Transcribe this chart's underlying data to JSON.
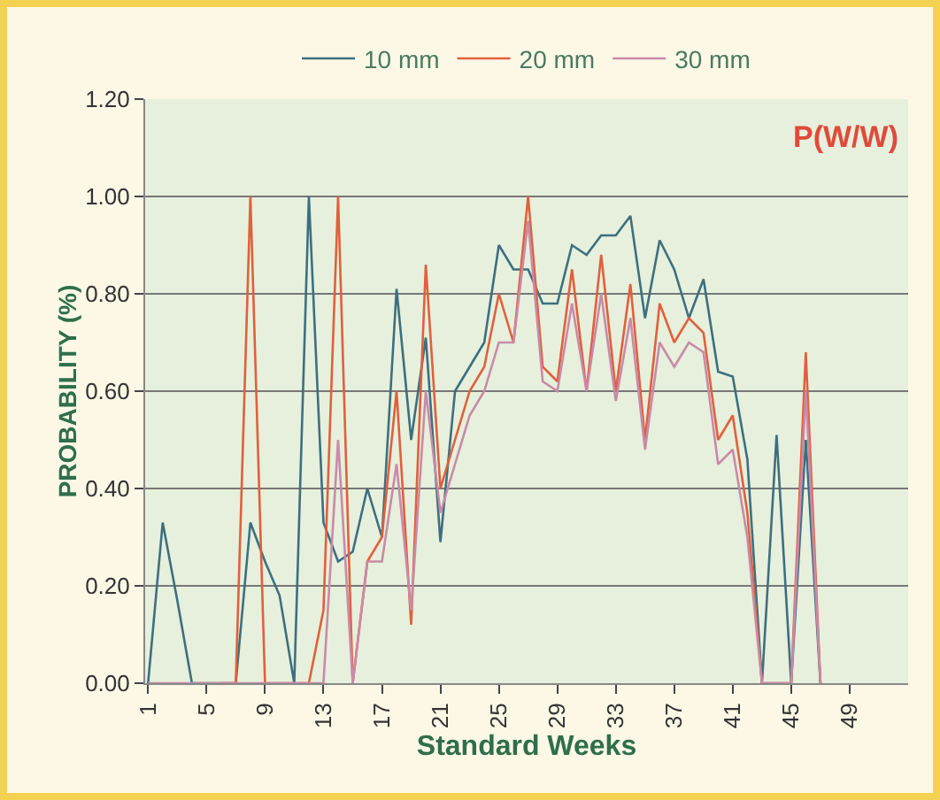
{
  "chart_data": {
    "type": "line",
    "xlabel": "Standard Weeks",
    "ylabel": "PROBABILITY (%)",
    "annotations": [
      "P(W/W)"
    ],
    "x": [
      1,
      2,
      3,
      4,
      5,
      6,
      7,
      8,
      9,
      10,
      11,
      12,
      13,
      14,
      15,
      16,
      17,
      18,
      19,
      20,
      21,
      22,
      23,
      24,
      25,
      26,
      27,
      28,
      29,
      30,
      31,
      32,
      33,
      34,
      35,
      36,
      37,
      38,
      39,
      40,
      41,
      42,
      43,
      44,
      45,
      46,
      47
    ],
    "series": [
      {
        "name": "10 mm",
        "color": "#3d6f80",
        "values": [
          0,
          0.33,
          0.17,
          0,
          0,
          0,
          0,
          0.33,
          0.25,
          0.18,
          0,
          1.0,
          0.33,
          0.25,
          0.27,
          0.4,
          0.3,
          0.81,
          0.5,
          0.71,
          0.29,
          0.6,
          0.65,
          0.7,
          0.9,
          0.85,
          0.85,
          0.78,
          0.78,
          0.9,
          0.88,
          0.92,
          0.92,
          0.96,
          0.75,
          0.91,
          0.85,
          0.75,
          0.83,
          0.64,
          0.63,
          0.46,
          0,
          0.51,
          0,
          0.5,
          0
        ]
      },
      {
        "name": "20 mm",
        "color": "#e0603c",
        "values": [
          null,
          null,
          null,
          null,
          null,
          0,
          0,
          1.0,
          0,
          0,
          0,
          0,
          0.15,
          1.0,
          0,
          0.25,
          0.3,
          0.6,
          0.12,
          0.86,
          0.4,
          0.5,
          0.6,
          0.65,
          0.8,
          0.7,
          1.0,
          0.65,
          0.62,
          0.85,
          0.6,
          0.88,
          0.6,
          0.82,
          0.5,
          0.78,
          0.7,
          0.75,
          0.72,
          0.5,
          0.55,
          0.35,
          0,
          0,
          0,
          0.68,
          0
        ]
      },
      {
        "name": "30 mm",
        "color": "#c98aa8",
        "values": [
          0,
          0,
          0,
          0,
          0,
          0,
          0,
          0,
          0,
          0,
          0,
          0,
          0,
          0.5,
          0,
          0.25,
          0.25,
          0.45,
          0.15,
          0.6,
          0.35,
          0.45,
          0.55,
          0.6,
          0.7,
          0.7,
          0.95,
          0.62,
          0.6,
          0.78,
          0.6,
          0.8,
          0.58,
          0.75,
          0.48,
          0.7,
          0.65,
          0.7,
          0.68,
          0.45,
          0.48,
          0.3,
          0,
          0,
          0,
          0.6,
          0
        ]
      }
    ],
    "xlim": [
      0.8,
      53
    ],
    "xticks": [
      1,
      5,
      9,
      13,
      17,
      21,
      25,
      29,
      33,
      37,
      41,
      45,
      49
    ],
    "ylim": [
      0,
      1.2
    ],
    "yticks": [
      {
        "value": 0,
        "label": "0.00"
      },
      {
        "value": 0.2,
        "label": "0.20"
      },
      {
        "value": 0.4,
        "label": "0.40"
      },
      {
        "value": 0.6,
        "label": "0.60"
      },
      {
        "value": 0.8,
        "label": "0.80"
      },
      {
        "value": 1.0,
        "label": "1.00"
      },
      {
        "value": 1.2,
        "label": "1.20"
      }
    ],
    "grid": "y",
    "legend": "top",
    "marker": "none",
    "line_style": "solid"
  }
}
